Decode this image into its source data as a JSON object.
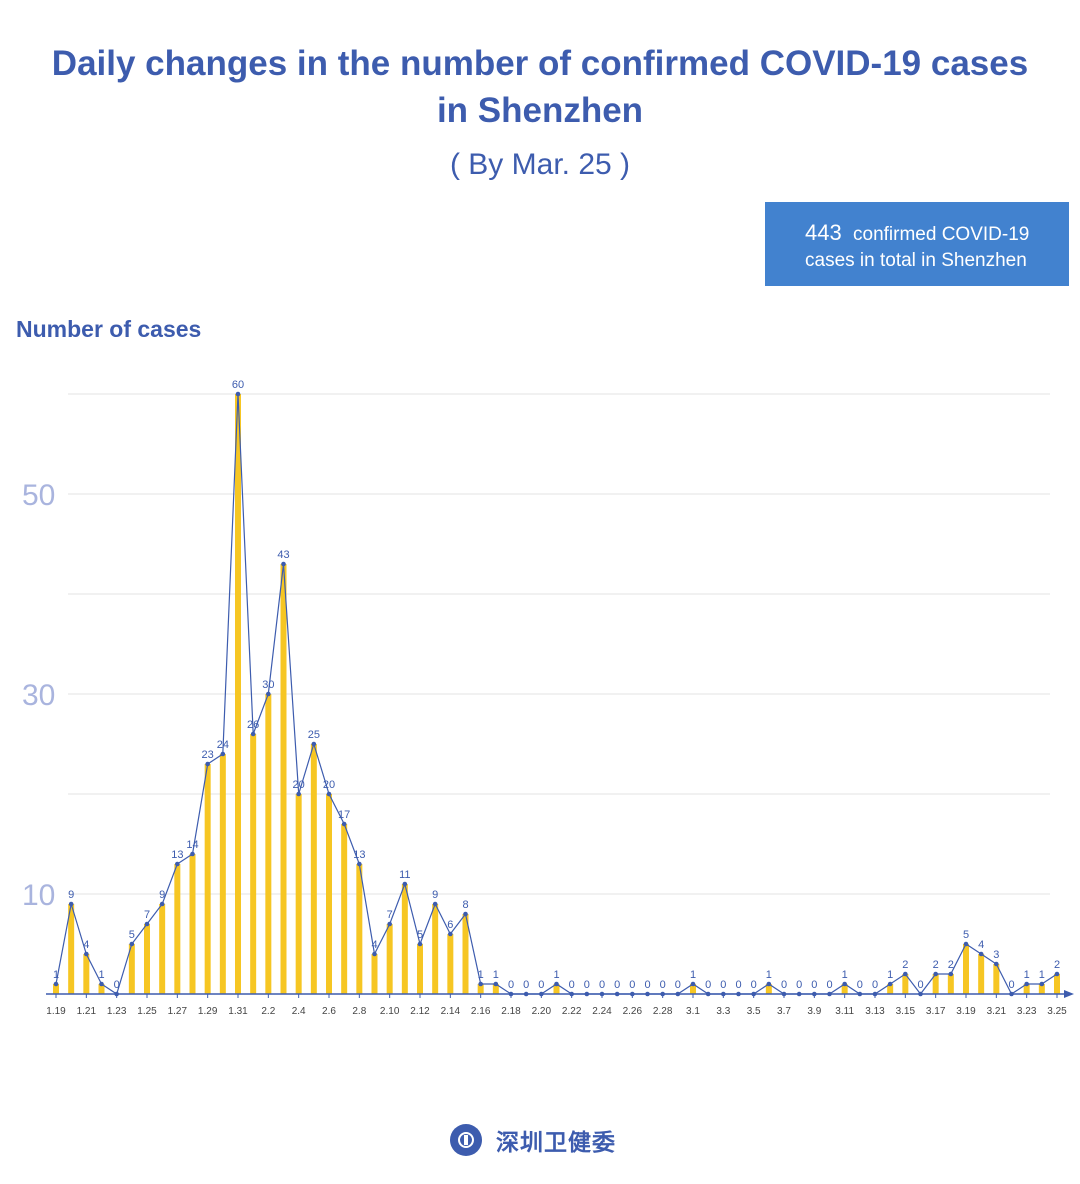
{
  "header": {
    "title_line1": "Daily changes in the number of confirmed COVID-19 cases",
    "title_line2": "in Shenzhen",
    "subtitle": "( By Mar. 25 )"
  },
  "summary": {
    "total": "443",
    "text_line1": "confirmed COVID-19",
    "text_line2": "cases in total in Shenzhen"
  },
  "footer": {
    "organization": "深圳卫健委"
  },
  "colors": {
    "bar": "#f6c623",
    "line": "#3d5cae",
    "title": "#3d5cae",
    "tick": "#a9b4de",
    "grid": "#e3e3e3",
    "box": "#4282cf"
  },
  "chart_data": {
    "type": "bar",
    "overlay": "line",
    "title": "Daily changes in the number of confirmed COVID-19 cases in Shenzhen",
    "ylabel": "Number of cases",
    "xlabel": "",
    "ylim": [
      0,
      60
    ],
    "yticks": [
      10,
      30,
      50
    ],
    "grid": true,
    "categories": [
      "1.19",
      "1.20",
      "1.21",
      "1.22",
      "1.23",
      "1.24",
      "1.25",
      "1.26",
      "1.27",
      "1.28",
      "1.29",
      "1.30",
      "1.31",
      "2.1",
      "2.2",
      "2.3",
      "2.4",
      "2.5",
      "2.6",
      "2.7",
      "2.8",
      "2.9",
      "2.10",
      "2.11",
      "2.12",
      "2.13",
      "2.14",
      "2.15",
      "2.16",
      "2.17",
      "2.18",
      "2.19",
      "2.20",
      "2.21",
      "2.22",
      "2.23",
      "2.24",
      "2.25",
      "2.26",
      "2.27",
      "2.28",
      "2.29",
      "3.1",
      "3.2",
      "3.3",
      "3.4",
      "3.5",
      "3.6",
      "3.7",
      "3.8",
      "3.9",
      "3.10",
      "3.11",
      "3.12",
      "3.13",
      "3.14",
      "3.15",
      "3.16",
      "3.17",
      "3.18",
      "3.19",
      "3.20",
      "3.21",
      "3.22",
      "3.23",
      "3.24",
      "3.25"
    ],
    "x_tick_labels": [
      "1.19",
      "1.21",
      "1.23",
      "1.25",
      "1.27",
      "1.29",
      "1.31",
      "2.2",
      "2.4",
      "2.6",
      "2.8",
      "2.10",
      "2.12",
      "2.14",
      "2.16",
      "2.18",
      "2.20",
      "2.22",
      "2.24",
      "2.26",
      "2.28",
      "3.1",
      "3.3",
      "3.5",
      "3.7",
      "3.9",
      "3.11",
      "3.13",
      "3.15",
      "3.17",
      "3.19",
      "3.21",
      "3.23",
      "3.25"
    ],
    "values": [
      1,
      9,
      4,
      1,
      0,
      5,
      7,
      9,
      13,
      14,
      23,
      24,
      60,
      26,
      30,
      43,
      20,
      25,
      20,
      17,
      13,
      4,
      7,
      11,
      5,
      9,
      6,
      8,
      1,
      1,
      0,
      0,
      0,
      1,
      0,
      0,
      0,
      0,
      0,
      0,
      0,
      0,
      1,
      0,
      0,
      0,
      0,
      1,
      0,
      0,
      0,
      0,
      1,
      0,
      0,
      1,
      2,
      0,
      2,
      2,
      5,
      4,
      3,
      0,
      1,
      1,
      2
    ]
  }
}
